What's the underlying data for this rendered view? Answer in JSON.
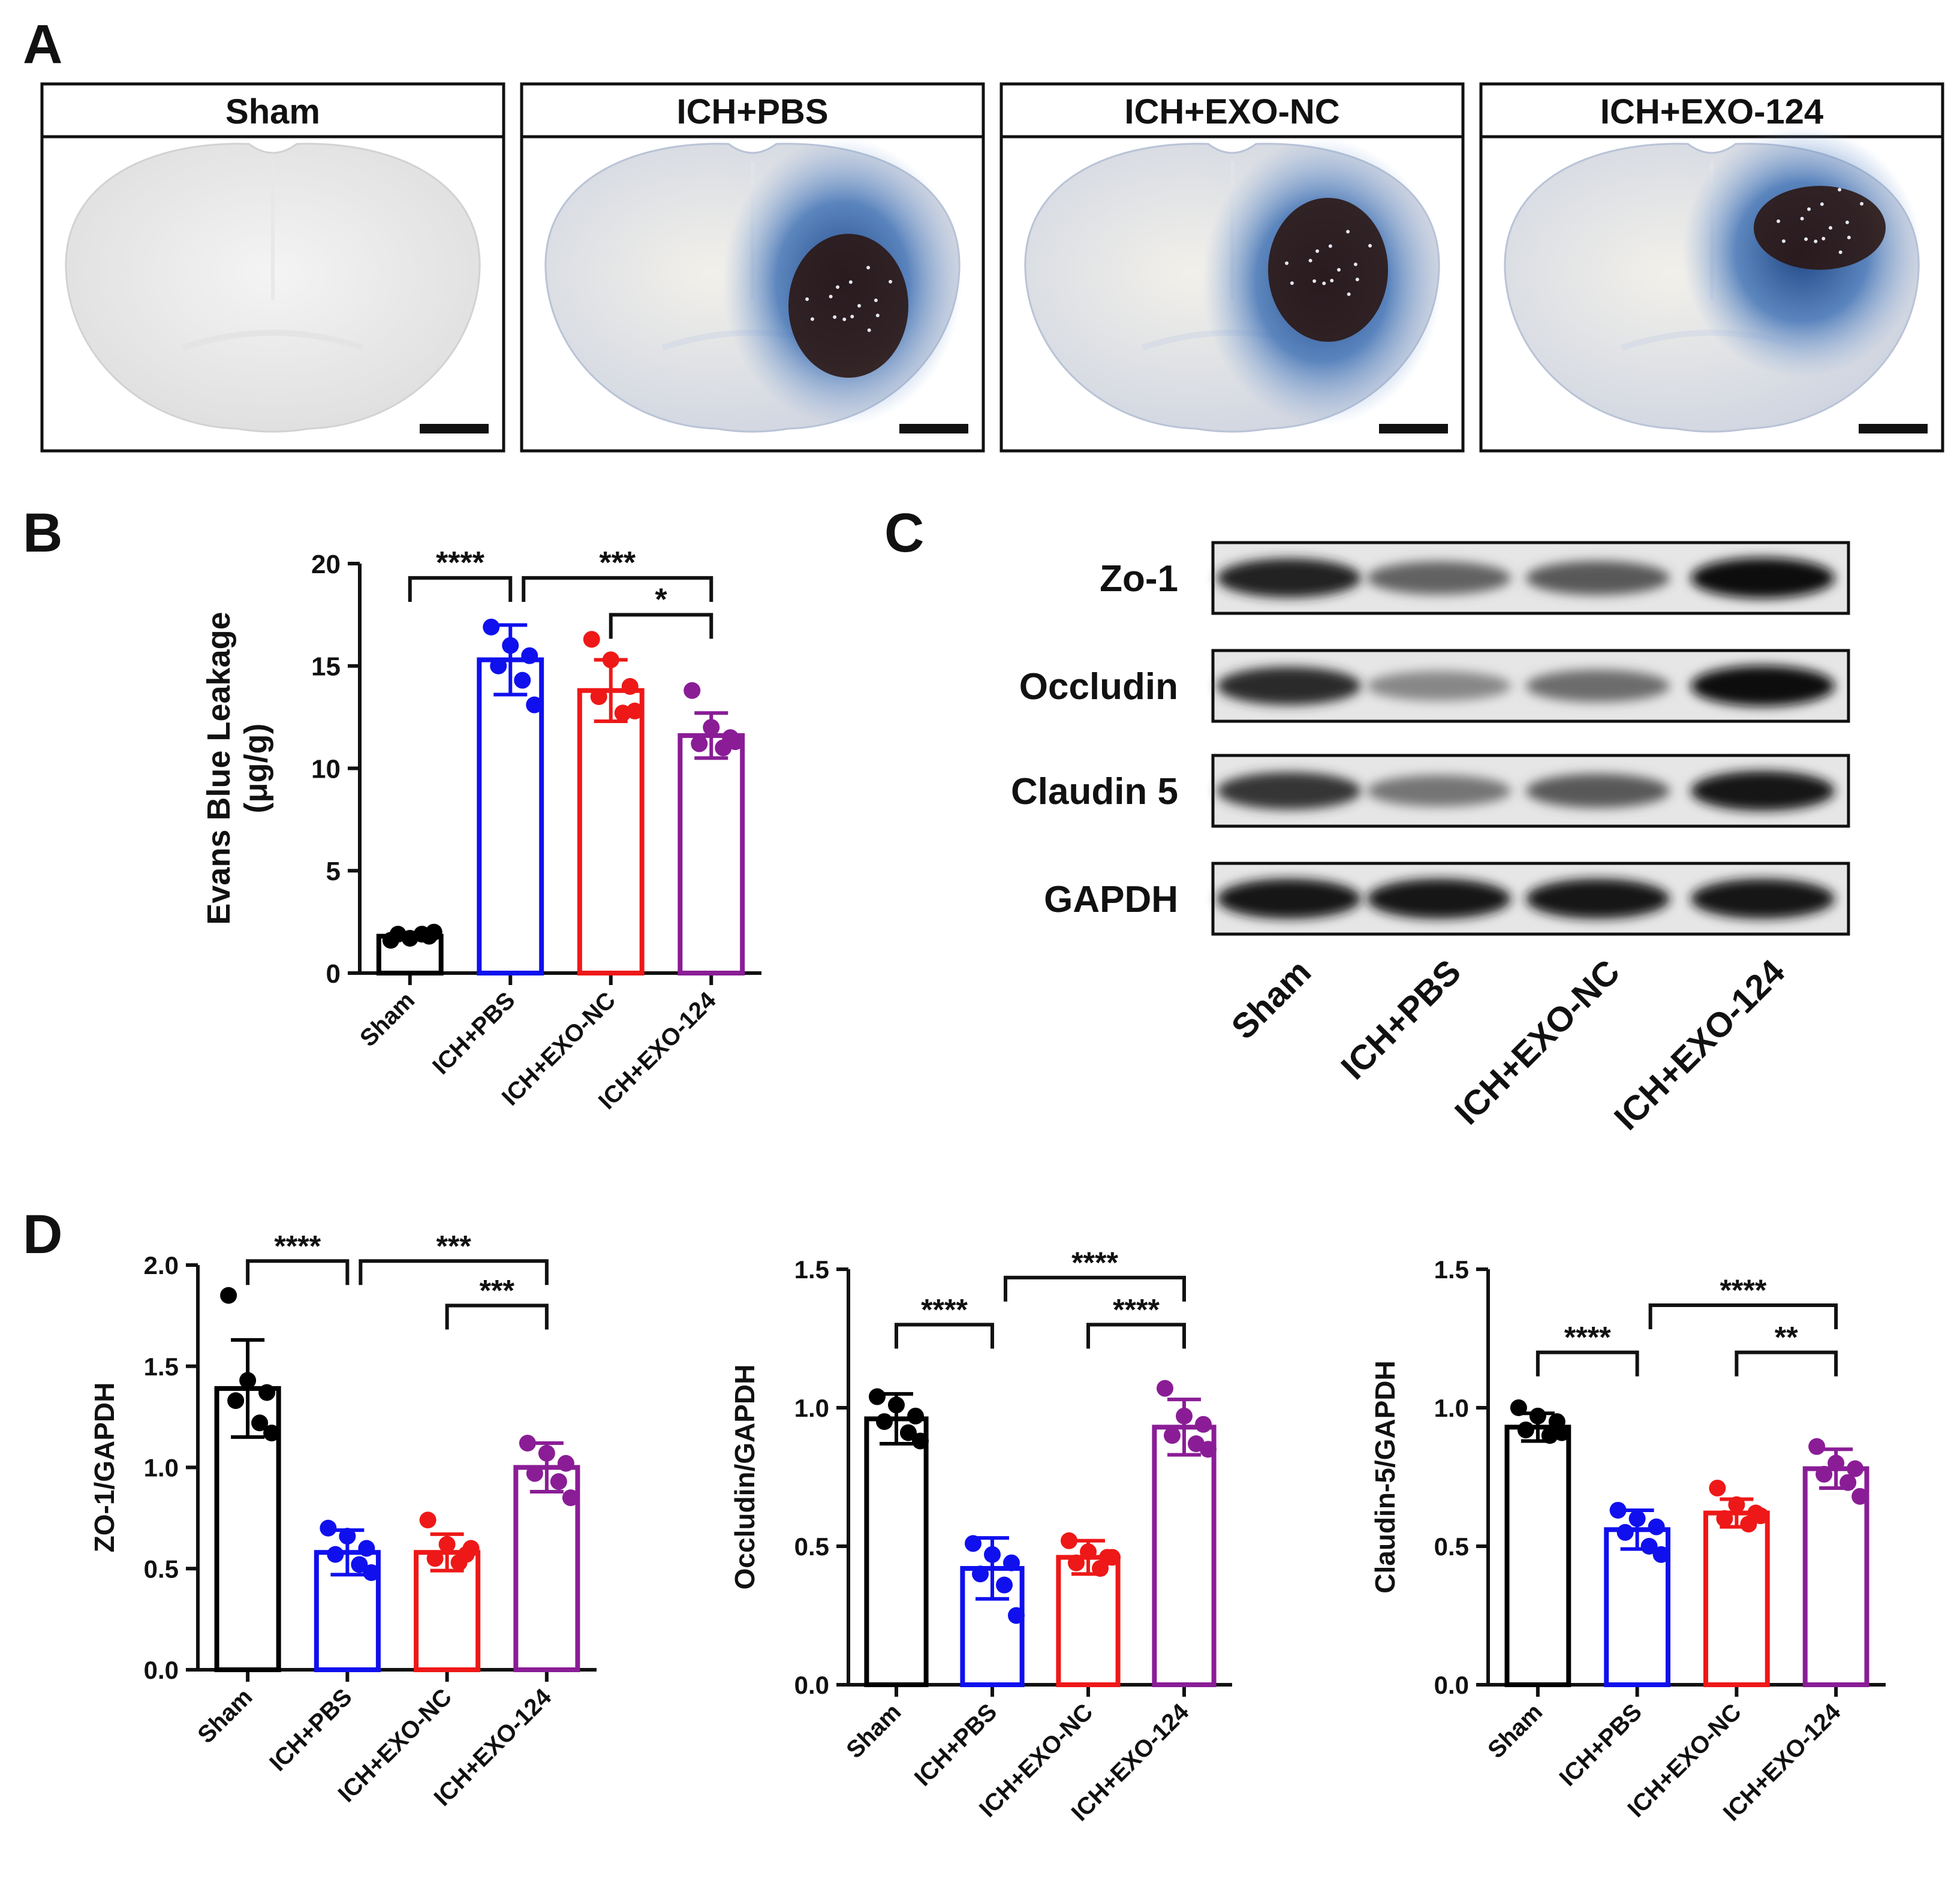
{
  "panel_letters": {
    "a": "A",
    "b": "B",
    "c": "C",
    "d": "D"
  },
  "colors": {
    "Sham": "#000000",
    "ICH+PBS": "#1010ee",
    "ICH+EXO-NC": "#ee1818",
    "ICH+EXO-124": "#8a1d96",
    "blue_dye": "#1e4f9a",
    "clot": "#2a1410"
  },
  "panel_a": {
    "photos": [
      {
        "label": "Sham",
        "image": "brain-slice-photo"
      },
      {
        "label": "ICH+PBS",
        "image": "brain-slice-photo"
      },
      {
        "label": "ICH+EXO-NC",
        "image": "brain-slice-photo"
      },
      {
        "label": "ICH+EXO-124",
        "image": "brain-slice-photo"
      }
    ]
  },
  "panel_c": {
    "bands": [
      "Zo-1",
      "Occludin",
      "Claudin 5",
      "GAPDH"
    ],
    "band_intensity": {
      "Zo-1": [
        0.9,
        0.55,
        0.6,
        1.0
      ],
      "Occludin": [
        0.85,
        0.35,
        0.5,
        1.0
      ],
      "Claudin 5": [
        0.8,
        0.45,
        0.6,
        0.95
      ],
      "GAPDH": [
        0.95,
        0.95,
        0.95,
        0.95
      ]
    },
    "lanes": [
      "Sham",
      "ICH+PBS",
      "ICH+EXO-NC",
      "ICH+EXO-124"
    ]
  },
  "chart_data": [
    {
      "type": "bar",
      "panel": "B",
      "ylabel_line1": "Evans Blue  Leakage",
      "ylabel_line2": "(μg/g)",
      "categories": [
        "Sham",
        "ICH+PBS",
        "ICH+EXO-NC",
        "ICH+EXO-124"
      ],
      "values": [
        1.8,
        15.3,
        13.8,
        11.6
      ],
      "errors": [
        0.15,
        1.7,
        1.5,
        1.1
      ],
      "points": [
        [
          1.6,
          1.7,
          1.8,
          1.9,
          1.9,
          2.0
        ],
        [
          16.9,
          16.0,
          15.5,
          15.0,
          14.3,
          13.1
        ],
        [
          16.3,
          15.3,
          14.0,
          13.5,
          12.7,
          12.8
        ],
        [
          13.8,
          12.0,
          11.5,
          11.2,
          11.0,
          11.3
        ]
      ],
      "ylim": [
        0,
        20
      ],
      "yticks": [
        0,
        5,
        10,
        15,
        20
      ],
      "significance": [
        {
          "from": 0,
          "to": 1,
          "label": "****",
          "y": 19.3
        },
        {
          "from": 1,
          "to": 3,
          "label": "***",
          "y": 19.3
        },
        {
          "from": 2,
          "to": 3,
          "label": "*",
          "y": 17.5
        }
      ]
    },
    {
      "type": "bar",
      "panel": "D1",
      "ylabel": "ZO-1/GAPDH",
      "categories": [
        "Sham",
        "ICH+PBS",
        "ICH+EXO-NC",
        "ICH+EXO-124"
      ],
      "values": [
        1.39,
        0.58,
        0.58,
        1.0
      ],
      "errors": [
        0.24,
        0.11,
        0.09,
        0.12
      ],
      "points": [
        [
          1.85,
          1.43,
          1.37,
          1.33,
          1.22,
          1.17
        ],
        [
          0.7,
          0.66,
          0.6,
          0.57,
          0.52,
          0.48
        ],
        [
          0.74,
          0.62,
          0.57,
          0.55,
          0.53,
          0.6
        ],
        [
          1.12,
          1.07,
          1.02,
          0.97,
          0.93,
          0.85
        ]
      ],
      "ylim": [
        0,
        2.0
      ],
      "yticks": [
        "0.0",
        "0.5",
        "1.0",
        "1.5",
        "2.0"
      ],
      "significance": [
        {
          "from": 0,
          "to": 1,
          "label": "****",
          "y": 2.02
        },
        {
          "from": 1,
          "to": 3,
          "label": "***",
          "y": 2.02
        },
        {
          "from": 2,
          "to": 3,
          "label": "***",
          "y": 1.8
        }
      ]
    },
    {
      "type": "bar",
      "panel": "D2",
      "ylabel": "Occludin/GAPDH",
      "categories": [
        "Sham",
        "ICH+PBS",
        "ICH+EXO-NC",
        "ICH+EXO-124"
      ],
      "values": [
        0.96,
        0.42,
        0.46,
        0.93
      ],
      "errors": [
        0.09,
        0.11,
        0.06,
        0.1
      ],
      "points": [
        [
          1.04,
          1.01,
          0.97,
          0.95,
          0.91,
          0.88
        ],
        [
          0.51,
          0.47,
          0.44,
          0.4,
          0.36,
          0.25
        ],
        [
          0.52,
          0.48,
          0.46,
          0.44,
          0.42,
          0.46
        ],
        [
          1.07,
          0.97,
          0.94,
          0.9,
          0.87,
          0.85
        ]
      ],
      "ylim": [
        0,
        1.5
      ],
      "yticks": [
        "0.0",
        "0.5",
        "1.0",
        "1.5"
      ],
      "significance": [
        {
          "from": 0,
          "to": 1,
          "label": "****",
          "y": 1.3
        },
        {
          "from": 1,
          "to": 3,
          "label": "****",
          "y": 1.47
        },
        {
          "from": 2,
          "to": 3,
          "label": "****",
          "y": 1.3
        }
      ]
    },
    {
      "type": "bar",
      "panel": "D3",
      "ylabel": "Claudin-5/GAPDH",
      "categories": [
        "Sham",
        "ICH+PBS",
        "ICH+EXO-NC",
        "ICH+EXO-124"
      ],
      "values": [
        0.93,
        0.56,
        0.62,
        0.78
      ],
      "errors": [
        0.05,
        0.07,
        0.05,
        0.07
      ],
      "points": [
        [
          1.0,
          0.97,
          0.95,
          0.92,
          0.9,
          0.91
        ],
        [
          0.63,
          0.6,
          0.57,
          0.55,
          0.5,
          0.47
        ],
        [
          0.71,
          0.65,
          0.62,
          0.6,
          0.58,
          0.61
        ],
        [
          0.86,
          0.8,
          0.78,
          0.76,
          0.73,
          0.68
        ]
      ],
      "ylim": [
        0,
        1.5
      ],
      "yticks": [
        "0.0",
        "0.5",
        "1.0",
        "1.5"
      ],
      "significance": [
        {
          "from": 0,
          "to": 1,
          "label": "****",
          "y": 1.2
        },
        {
          "from": 1,
          "to": 3,
          "label": "****",
          "y": 1.37
        },
        {
          "from": 2,
          "to": 3,
          "label": "**",
          "y": 1.2
        }
      ]
    }
  ]
}
